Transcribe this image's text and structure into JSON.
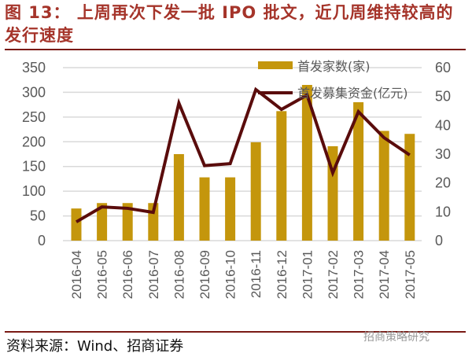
{
  "title": "图 13： 上周再次下发一批 IPO 批文，近几周维持较高的发行速度",
  "source": "资料来源：Wind、招商证券",
  "watermark": "招商策略研究",
  "colors": {
    "bar": "#C4960C",
    "line": "#5A0C0C",
    "title": "#A5342A",
    "grid": "#D9D9D9"
  },
  "chart_data": {
    "type": "bar+line",
    "categories": [
      "2016-04",
      "2016-05",
      "2016-06",
      "2016-07",
      "2016-08",
      "2016-09",
      "2016-10",
      "2016-11",
      "2016-12",
      "2017-01",
      "2017-02",
      "2017-03",
      "2017-04",
      "2017-05"
    ],
    "series": [
      {
        "name": "首发家数(家)",
        "type": "bar",
        "axis": "left",
        "values": [
          65,
          76,
          76,
          76,
          175,
          128,
          128,
          199,
          262,
          315,
          191,
          280,
          222,
          216
        ]
      },
      {
        "name": "首发募集资金(亿元)",
        "type": "line",
        "axis": "right",
        "values": [
          6.5,
          11.7,
          11.2,
          9.8,
          47.7,
          26,
          26.7,
          52.4,
          45.5,
          50.5,
          23.5,
          44.7,
          35.7,
          29.7
        ]
      }
    ],
    "ylim_left": [
      0,
      350
    ],
    "yticks_left": [
      "0",
      "50",
      "100",
      "150",
      "200",
      "250",
      "300",
      "350"
    ],
    "ylim_right": [
      0,
      60
    ],
    "yticks_right": [
      "0",
      "10",
      "20",
      "30",
      "40",
      "50",
      "60"
    ],
    "grid": true,
    "legend": "top-right"
  }
}
